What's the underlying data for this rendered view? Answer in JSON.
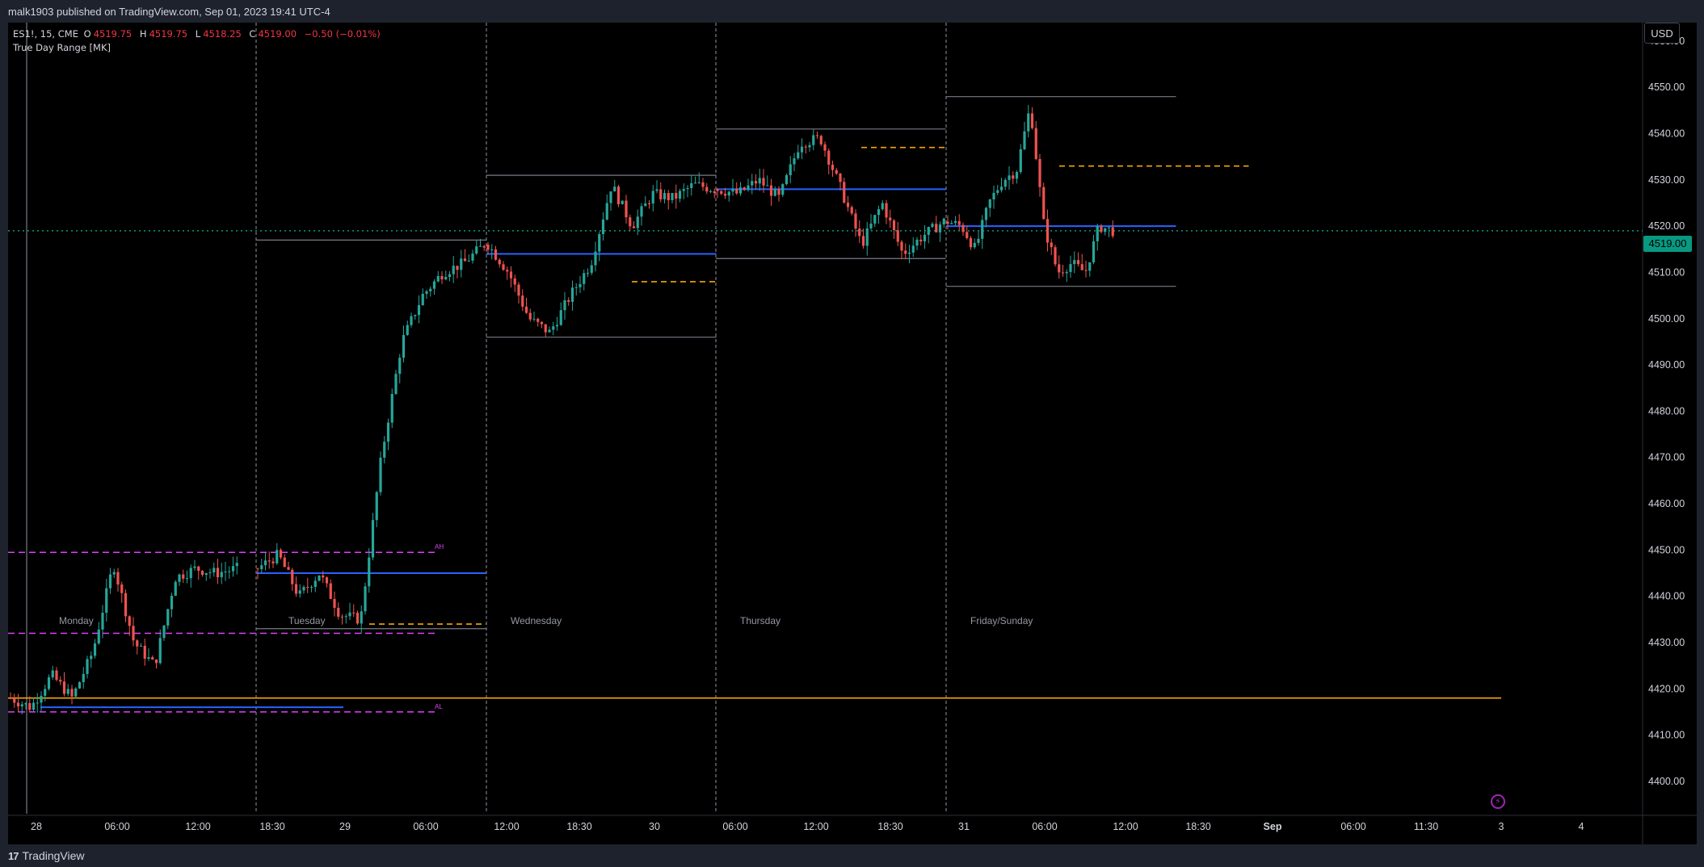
{
  "header": {
    "published": "malk1903 published on TradingView.com, Sep 01, 2023 19:41 UTC-4"
  },
  "legend": {
    "symbol": "ES1!, 15, CME",
    "o_label": "O",
    "o_value": "4519.75",
    "h_label": "H",
    "h_value": "4519.75",
    "l_label": "L",
    "l_value": "4518.25",
    "c_label": "C",
    "c_value": "4519.00",
    "change": "−0.50 (−0.01%)",
    "indicator": "True Day Range [MK]"
  },
  "currency_button": "USD",
  "last_price_badge": "4519.00",
  "footer": {
    "logo_text": "TradingView",
    "logo_mark": "17"
  },
  "colors": {
    "bull": "#26a69a",
    "bear": "#ef5350",
    "blue_level": "#2962ff",
    "orange_level": "#f7a600",
    "magenta": "#e040fb",
    "gray_box": "#787b86",
    "last_price_line": "#089981"
  },
  "chart_data": {
    "type": "candlestick",
    "symbol": "ES1!",
    "interval": "15",
    "exchange": "CME",
    "ylim": [
      4393,
      4564
    ],
    "y_ticks": [
      "4560.00",
      "4550.00",
      "4540.00",
      "4530.00",
      "4520.00",
      "4510.00",
      "4500.00",
      "4490.00",
      "4480.00",
      "4470.00",
      "4460.00",
      "4450.00",
      "4440.00",
      "4430.00",
      "4420.00",
      "4410.00",
      "4400.00"
    ],
    "x_ticks": [
      "28",
      "06:00",
      "12:00",
      "18:30",
      "29",
      "06:00",
      "12:00",
      "18:30",
      "30",
      "06:00",
      "12:00",
      "18:30",
      "31",
      "06:00",
      "12:00",
      "18:30",
      "Sep",
      "06:00",
      "11:30",
      "3",
      "4"
    ],
    "day_labels": [
      "Monday",
      "Tuesday",
      "Wednesday",
      "Thursday",
      "Friday/Sunday"
    ],
    "session_markers": [
      "AH",
      "AL"
    ],
    "last_price": 4519.0,
    "days": [
      {
        "name": "Monday",
        "open": 4418,
        "high": 4448,
        "low": 4415,
        "close": 4446
      },
      {
        "name": "Tuesday",
        "open": 4446,
        "high": 4517,
        "low": 4433,
        "close": 4516,
        "range_high": 4517,
        "range_low": 4433,
        "mid": 4445,
        "dashed": 4434
      },
      {
        "name": "Wednesday",
        "open": 4516,
        "high": 4531,
        "low": 4496,
        "close": 4528,
        "range_high": 4531,
        "range_low": 4496,
        "mid": 4514,
        "dashed": 4508
      },
      {
        "name": "Thursday",
        "open": 4528,
        "high": 4541,
        "low": 4513,
        "close": 4520,
        "range_high": 4541,
        "range_low": 4513,
        "mid": 4528,
        "dashed": 4537
      },
      {
        "name": "Friday/Sunday",
        "open": 4521,
        "high": 4548,
        "low": 4507,
        "close": 4519,
        "range_high": 4548,
        "range_low": 4507,
        "mid": 4520,
        "dashed": 4533
      }
    ],
    "levels": {
      "orange_solid": 4418,
      "monday_blue": 4416,
      "magenta_high": 4449.5,
      "magenta_mid": 4432,
      "magenta_low": 4415
    },
    "grid": false,
    "legend_position": "top-left"
  }
}
